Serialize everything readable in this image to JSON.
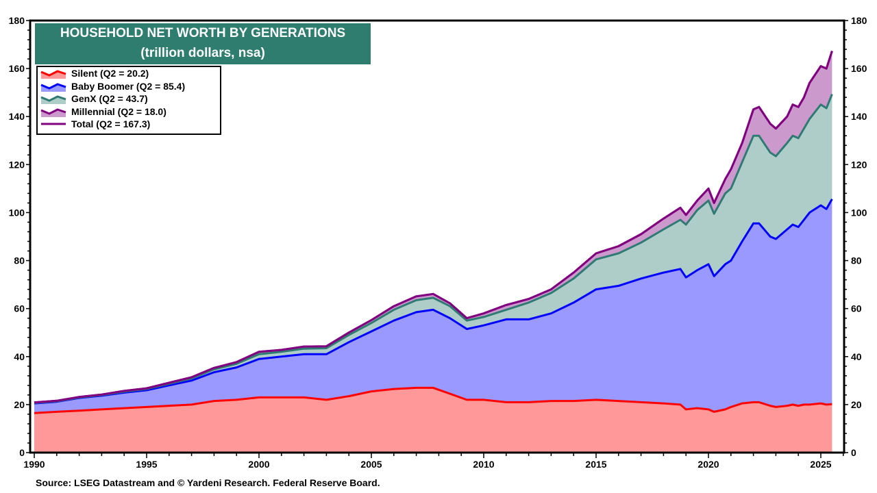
{
  "chart_data": {
    "type": "area",
    "stacked": true,
    "title": "HOUSEHOLD NET WORTH BY GENERATIONS",
    "subtitle": "(trillion dollars, nsa)",
    "xlim": [
      1990,
      2026
    ],
    "ylim": [
      0,
      180
    ],
    "y_ticks": [
      0,
      20,
      40,
      60,
      80,
      100,
      120,
      140,
      160,
      180
    ],
    "x_ticks": [
      1990,
      1995,
      2000,
      2005,
      2010,
      2015,
      2020,
      2025
    ],
    "grid": false,
    "legend_placement": "top-left",
    "x": [
      1990,
      1991,
      1992,
      1993,
      1994,
      1995,
      1996,
      1997,
      1998,
      1999,
      2000,
      2001,
      2002,
      2003,
      2004,
      2005,
      2006,
      2007,
      2007.75,
      2008.5,
      2009.25,
      2010,
      2011,
      2012,
      2013,
      2014,
      2015,
      2016,
      2017,
      2018,
      2018.75,
      2019,
      2019.5,
      2020,
      2020.25,
      2020.75,
      2021,
      2021.5,
      2022,
      2022.25,
      2022.75,
      2023,
      2023.5,
      2023.75,
      2024,
      2024.25,
      2024.5,
      2025,
      2025.25,
      2025.5
    ],
    "series": [
      {
        "name": "Silent (Q2 = 20.2)",
        "line": "#ff0000",
        "fill": "#ff9999",
        "values": [
          16.5,
          17,
          17.5,
          18,
          18.5,
          19,
          19.5,
          20,
          21.5,
          22,
          23,
          23,
          23,
          22,
          23.5,
          25.5,
          26.5,
          27,
          27,
          24.5,
          22,
          22,
          21,
          21,
          21.5,
          21.5,
          22,
          21.5,
          21,
          20.5,
          20,
          18,
          18.5,
          18,
          17,
          18,
          19,
          20.5,
          21,
          21,
          19.5,
          19,
          19.5,
          20,
          19.5,
          20,
          20,
          20.5,
          20,
          20.2
        ]
      },
      {
        "name": "Baby Boomer (Q2 = 85.4)",
        "line": "#0000ff",
        "fill": "#9999ff",
        "values": [
          4,
          4.2,
          5.3,
          5.7,
          6.5,
          7,
          8.5,
          10,
          12,
          13.5,
          16,
          17,
          18,
          19,
          22.5,
          25,
          28.5,
          31.5,
          32.5,
          31.5,
          29.5,
          31,
          34.5,
          34.5,
          36.5,
          41,
          46,
          48,
          51.5,
          54.5,
          56.5,
          55,
          57.5,
          60.5,
          56.5,
          60.5,
          61,
          67.5,
          74.5,
          74.5,
          70.5,
          70,
          73.5,
          75,
          74.5,
          77,
          80,
          82.5,
          81.5,
          85.4
        ]
      },
      {
        "name": "GenX (Q2 = 43.7)",
        "line": "#2e7b73",
        "fill": "#aecdc8",
        "values": [
          0.2,
          0.2,
          0.2,
          0.3,
          0.4,
          0.5,
          0.7,
          0.9,
          1.2,
          1.5,
          2,
          2,
          2.3,
          2.5,
          3,
          3.5,
          4.5,
          5,
          5,
          5,
          3.5,
          3.5,
          4,
          7,
          8.5,
          10,
          12.5,
          13.5,
          15,
          18,
          20.5,
          22,
          25,
          26.5,
          26,
          29.5,
          30,
          33,
          36.5,
          36.5,
          35,
          34.5,
          36,
          37,
          37,
          38,
          39,
          42,
          42,
          43.7
        ]
      },
      {
        "name": "Millennial (Q2 = 18.0)",
        "line": "#800080",
        "fill": "#cc99cc",
        "values": [
          0.2,
          0.2,
          0.2,
          0.2,
          0.3,
          0.3,
          0.4,
          0.5,
          0.6,
          0.7,
          1,
          0.8,
          0.9,
          0.8,
          1,
          1.2,
          1.5,
          1.6,
          1.6,
          1.2,
          1,
          1.5,
          2,
          1.5,
          1.5,
          2.5,
          2.5,
          3,
          3.5,
          4.5,
          5,
          4,
          4,
          5,
          4.5,
          6,
          8,
          8,
          11,
          12,
          12,
          11.5,
          11,
          13,
          13,
          13,
          15,
          16,
          16.5,
          18.0
        ]
      }
    ],
    "total": {
      "name": "Total (Q2 = 167.3)",
      "line": "#800080"
    }
  },
  "source": "Source: LSEG Datastream and © Yardeni Research. Federal Reserve Board.",
  "colors": {
    "title_bg": "#2e7d6f",
    "title_text": "#ffffff"
  }
}
